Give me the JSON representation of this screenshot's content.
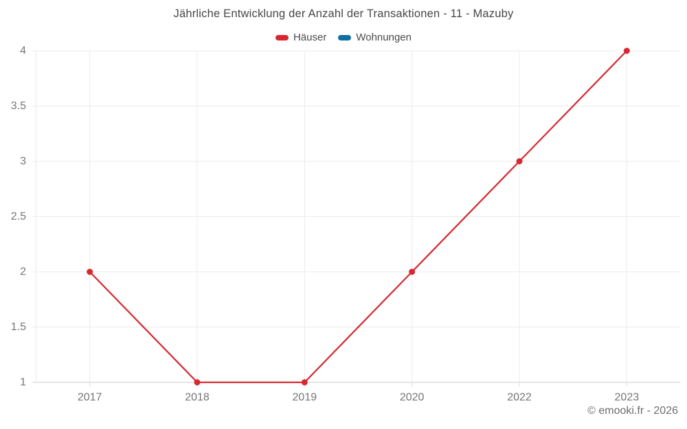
{
  "title": "Jährliche Entwicklung der Anzahl der Transaktionen - 11 - Mazuby",
  "legend": [
    {
      "label": "Häuser",
      "color": "#d7282f"
    },
    {
      "label": "Wohnungen",
      "color": "#1170a3"
    }
  ],
  "footer": {
    "copyright": "© emooki.fr - 2026"
  },
  "chart_data": {
    "type": "line",
    "title": "Jährliche Entwicklung der Anzahl der Transaktionen - 11 - Mazuby",
    "categories": [
      "2017",
      "2018",
      "2019",
      "2020",
      "2022",
      "2023"
    ],
    "series": [
      {
        "name": "Häuser",
        "color": "#d7282f",
        "values": [
          2,
          1,
          1,
          2,
          3,
          4
        ]
      },
      {
        "name": "Wohnungen",
        "color": "#1170a3",
        "values": []
      }
    ],
    "xlabel": "",
    "ylabel": "",
    "ylim": [
      1,
      4
    ],
    "yticks": [
      1,
      1.5,
      2,
      2.5,
      3,
      3.5,
      4
    ],
    "grid": true,
    "legend_position": "top",
    "marker": "circle"
  },
  "styles": {
    "grid_color": "#ebebeb",
    "axis_line_color": "#c9c9c9",
    "tick_mark_color": "#dadada",
    "tick_label_color": "#757575",
    "title_color": "#474747",
    "legend_label_color": "#4a4a4a",
    "copyright_color": "#6d6d6d",
    "background": "#ffffff"
  }
}
